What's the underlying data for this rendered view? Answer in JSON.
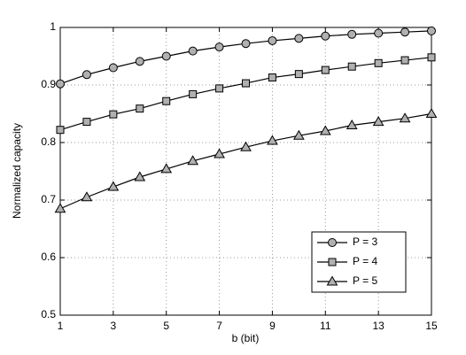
{
  "chart_data": {
    "type": "line",
    "xlabel": "b (bit)",
    "ylabel": "Normalized capacity",
    "x": [
      1,
      2,
      3,
      4,
      5,
      6,
      7,
      8,
      9,
      10,
      11,
      12,
      13,
      14,
      15
    ],
    "series": [
      {
        "name": "P = 3",
        "color": "#000000",
        "marker": "circle",
        "marker_color": "#b0b0b0",
        "values": [
          0.902,
          0.918,
          0.93,
          0.941,
          0.95,
          0.959,
          0.966,
          0.972,
          0.977,
          0.981,
          0.985,
          0.988,
          0.99,
          0.992,
          0.994
        ]
      },
      {
        "name": "P = 4",
        "color": "#000000",
        "marker": "square",
        "marker_color": "#b0b0b0",
        "values": [
          0.822,
          0.836,
          0.849,
          0.859,
          0.872,
          0.884,
          0.894,
          0.903,
          0.913,
          0.919,
          0.926,
          0.932,
          0.938,
          0.943,
          0.948
        ]
      },
      {
        "name": "P = 5",
        "color": "#000000",
        "marker": "triangle",
        "marker_color": "#b0b0b0",
        "values": [
          0.685,
          0.705,
          0.723,
          0.74,
          0.754,
          0.768,
          0.78,
          0.792,
          0.803,
          0.812,
          0.82,
          0.83,
          0.836,
          0.842,
          0.85
        ]
      }
    ],
    "xlim": [
      1,
      15
    ],
    "xticks": [
      1,
      3,
      5,
      7,
      9,
      11,
      13,
      15
    ],
    "ylim": [
      0.5,
      1
    ],
    "yticks": [
      0.5,
      0.6,
      0.7,
      0.8,
      0.9,
      1
    ],
    "grid": true,
    "legend": "lower right"
  }
}
